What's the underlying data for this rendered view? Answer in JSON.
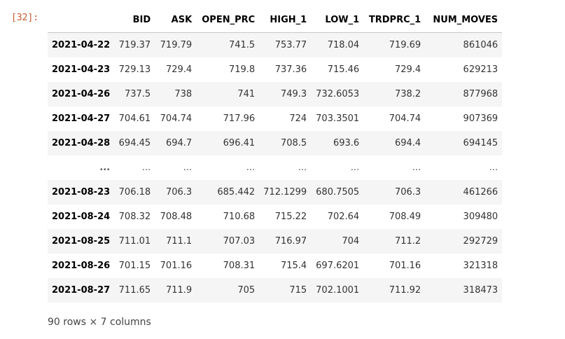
{
  "cell": {
    "prompt": "[32]:"
  },
  "table": {
    "columns": [
      "",
      "BID",
      "ASK",
      "OPEN_PRC",
      "HIGH_1",
      "LOW_1",
      "TRDPRC_1",
      "NUM_MOVES"
    ],
    "rows": [
      [
        "2021-04-22",
        "719.37",
        "719.79",
        "741.5",
        "753.77",
        "718.04",
        "719.69",
        "861046"
      ],
      [
        "2021-04-23",
        "729.13",
        "729.4",
        "719.8",
        "737.36",
        "715.46",
        "729.4",
        "629213"
      ],
      [
        "2021-04-26",
        "737.5",
        "738",
        "741",
        "749.3",
        "732.6053",
        "738.2",
        "877968"
      ],
      [
        "2021-04-27",
        "704.61",
        "704.74",
        "717.96",
        "724",
        "703.3501",
        "704.74",
        "907369"
      ],
      [
        "2021-04-28",
        "694.45",
        "694.7",
        "696.41",
        "708.5",
        "693.6",
        "694.4",
        "694145"
      ],
      [
        "...",
        "...",
        "...",
        "...",
        "...",
        "...",
        "...",
        "..."
      ],
      [
        "2021-08-23",
        "706.18",
        "706.3",
        "685.442",
        "712.1299",
        "680.7505",
        "706.3",
        "461266"
      ],
      [
        "2021-08-24",
        "708.32",
        "708.48",
        "710.68",
        "715.22",
        "702.64",
        "708.49",
        "309480"
      ],
      [
        "2021-08-25",
        "711.01",
        "711.1",
        "707.03",
        "716.97",
        "704",
        "711.2",
        "292729"
      ],
      [
        "2021-08-26",
        "701.15",
        "701.16",
        "708.31",
        "715.4",
        "697.6201",
        "701.16",
        "321318"
      ],
      [
        "2021-08-27",
        "711.65",
        "711.9",
        "705",
        "715",
        "702.1001",
        "711.92",
        "318473"
      ]
    ]
  },
  "shape_text": "90 rows × 7 columns"
}
